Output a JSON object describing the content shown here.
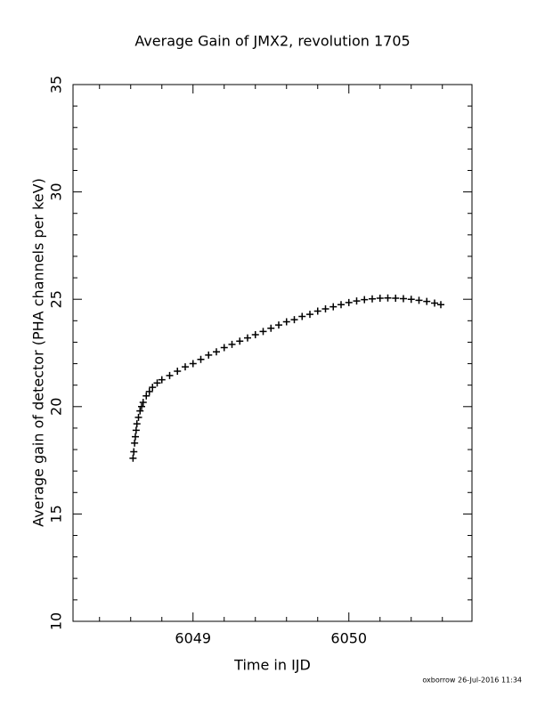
{
  "chart_data": {
    "type": "scatter",
    "title": "Average Gain of JMX2, revolution 1705",
    "x_label": "Time in IJD",
    "y_label": "Average gain of detector (PHA channels per keV)",
    "footer": "oxborrow 26-Jul-2016 11:34",
    "marker": "+",
    "color": "#000000",
    "xlim": [
      6048.23,
      6050.79
    ],
    "ylim": [
      10,
      35
    ],
    "xticks": [
      6049,
      6050
    ],
    "yticks": [
      10,
      15,
      20,
      25,
      30,
      35
    ],
    "xminorticks": [
      6048.4,
      6048.6,
      6048.8,
      6049.2,
      6049.4,
      6049.6,
      6049.8,
      6050.2,
      6050.4,
      6050.6
    ],
    "yminorticks": [
      11,
      12,
      13,
      14,
      16,
      17,
      18,
      19,
      21,
      22,
      23,
      24,
      26,
      27,
      28,
      29,
      31,
      32,
      33,
      34
    ],
    "x": [
      6048.615,
      6048.62,
      6048.625,
      6048.63,
      6048.635,
      6048.64,
      6048.65,
      6048.66,
      6048.67,
      6048.68,
      6048.7,
      6048.72,
      6048.74,
      6048.77,
      6048.8,
      6048.85,
      6048.9,
      6048.95,
      6049.0,
      6049.05,
      6049.1,
      6049.15,
      6049.2,
      6049.25,
      6049.3,
      6049.35,
      6049.4,
      6049.45,
      6049.5,
      6049.55,
      6049.6,
      6049.65,
      6049.7,
      6049.75,
      6049.8,
      6049.85,
      6049.9,
      6049.95,
      6050.0,
      6050.05,
      6050.1,
      6050.15,
      6050.2,
      6050.25,
      6050.3,
      6050.35,
      6050.4,
      6050.45,
      6050.5,
      6050.55,
      6050.59
    ],
    "values": [
      17.6,
      17.9,
      18.3,
      18.6,
      18.9,
      19.2,
      19.5,
      19.8,
      20.0,
      20.2,
      20.5,
      20.7,
      20.9,
      21.1,
      21.25,
      21.45,
      21.65,
      21.85,
      22.0,
      22.2,
      22.4,
      22.55,
      22.75,
      22.9,
      23.05,
      23.2,
      23.35,
      23.5,
      23.65,
      23.8,
      23.95,
      24.05,
      24.2,
      24.3,
      24.45,
      24.55,
      24.65,
      24.75,
      24.85,
      24.92,
      24.98,
      25.02,
      25.05,
      25.06,
      25.05,
      25.03,
      25.0,
      24.95,
      24.9,
      24.82,
      24.75
    ]
  }
}
